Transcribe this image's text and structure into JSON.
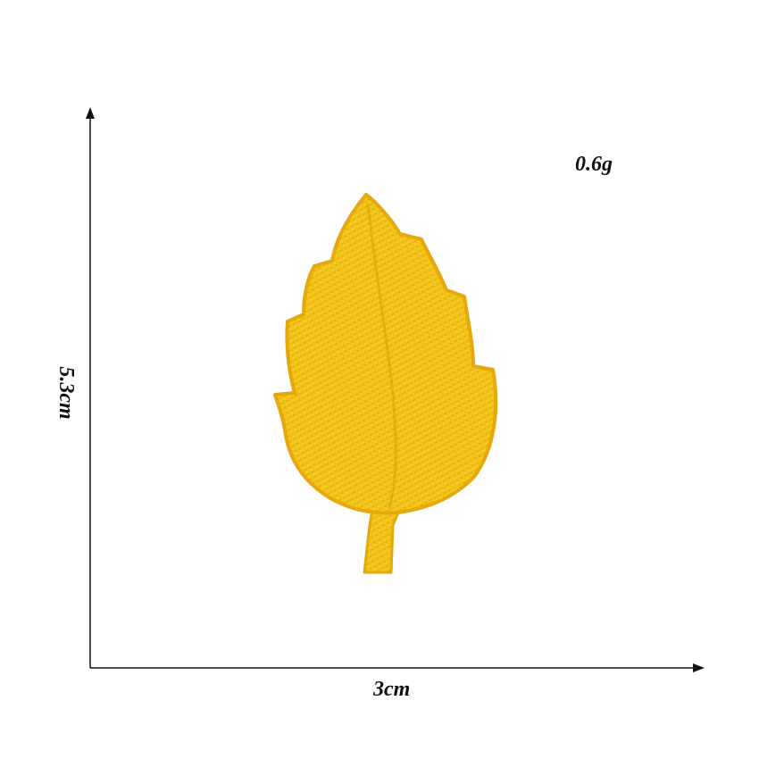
{
  "product": {
    "weight_text": "0.6g",
    "width_text": "3cm",
    "height_text": "5.3cm",
    "colors": {
      "leaf_fill": "#f2c418",
      "leaf_border": "#e6a80c",
      "leaf_stitch": "#d9a20a",
      "axis": "#111111"
    },
    "image_icon": "embroidered-yellow-leaf-patch"
  }
}
